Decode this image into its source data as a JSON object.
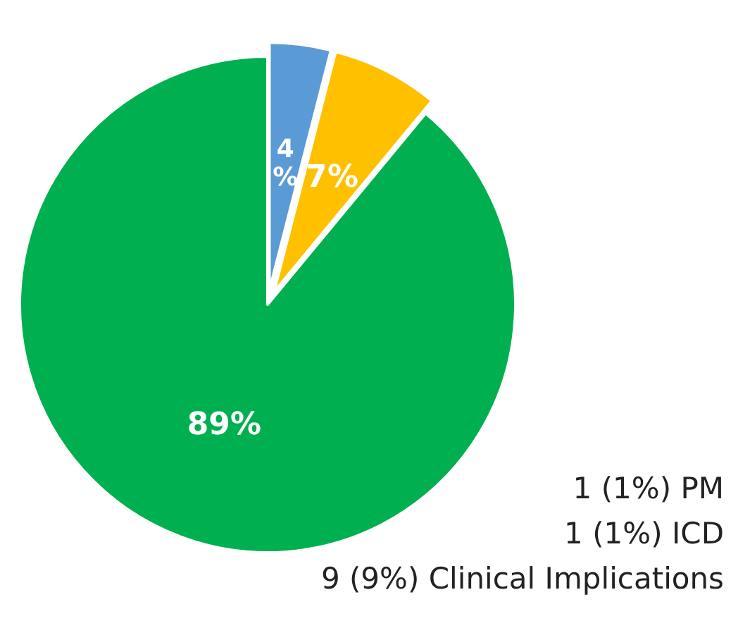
{
  "chart_data": {
    "type": "pie",
    "categories": [
      null,
      null,
      null
    ],
    "values": [
      4,
      7,
      89
    ],
    "colors": [
      "#5b9bd5",
      "#ffc000",
      "#00b050"
    ],
    "value_labels": [
      "4%",
      "7%",
      "89%"
    ],
    "annotations": [
      "1 (1%) PM",
      "1 (1%) ICD",
      "9 (9%) Clinical Implications"
    ]
  }
}
